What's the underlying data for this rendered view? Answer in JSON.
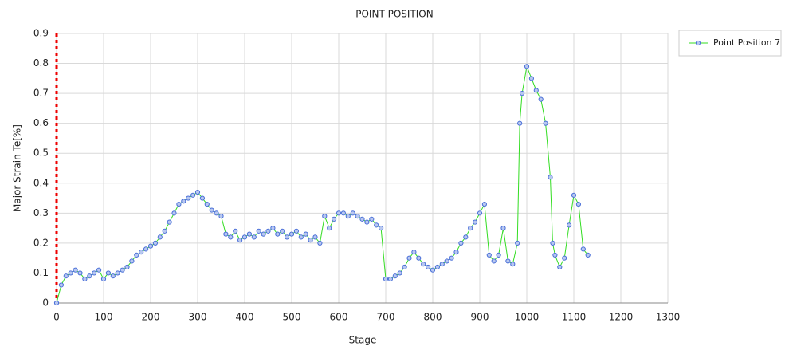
{
  "chart_data": {
    "type": "line",
    "title": "POINT POSITION",
    "x_label": "Stage",
    "y_label": "Major Strain Te[%]",
    "x": [
      0,
      10,
      20,
      30,
      40,
      50,
      60,
      70,
      80,
      90,
      100,
      110,
      120,
      130,
      140,
      150,
      160,
      170,
      180,
      190,
      200,
      210,
      220,
      230,
      240,
      250,
      260,
      270,
      280,
      290,
      300,
      310,
      320,
      330,
      340,
      350,
      360,
      370,
      380,
      390,
      400,
      410,
      420,
      430,
      440,
      450,
      460,
      470,
      480,
      490,
      500,
      510,
      520,
      530,
      540,
      550,
      560,
      570,
      580,
      590,
      600,
      610,
      620,
      630,
      640,
      650,
      660,
      670,
      680,
      690,
      700,
      710,
      720,
      730,
      740,
      750,
      760,
      770,
      780,
      790,
      800,
      810,
      820,
      830,
      840,
      850,
      860,
      870,
      880,
      890,
      900,
      910,
      920,
      930,
      940,
      950,
      960,
      970,
      980,
      985,
      990,
      1000,
      1010,
      1020,
      1030,
      1040,
      1050,
      1055,
      1060,
      1070,
      1080,
      1090,
      1100,
      1110,
      1120,
      1130
    ],
    "series": [
      {
        "name": "Point Position 7",
        "color": "#33dd22",
        "marker_color": "#4a6fd8",
        "values": [
          0,
          0.06,
          0.09,
          0.1,
          0.11,
          0.1,
          0.08,
          0.09,
          0.1,
          0.11,
          0.08,
          0.1,
          0.09,
          0.1,
          0.11,
          0.12,
          0.14,
          0.16,
          0.17,
          0.18,
          0.19,
          0.2,
          0.22,
          0.24,
          0.27,
          0.3,
          0.33,
          0.34,
          0.35,
          0.36,
          0.37,
          0.35,
          0.33,
          0.31,
          0.3,
          0.29,
          0.23,
          0.22,
          0.24,
          0.21,
          0.22,
          0.23,
          0.22,
          0.24,
          0.23,
          0.24,
          0.25,
          0.23,
          0.24,
          0.22,
          0.23,
          0.24,
          0.22,
          0.23,
          0.21,
          0.22,
          0.2,
          0.29,
          0.25,
          0.28,
          0.3,
          0.3,
          0.29,
          0.3,
          0.29,
          0.28,
          0.27,
          0.28,
          0.26,
          0.25,
          0.08,
          0.08,
          0.09,
          0.1,
          0.12,
          0.15,
          0.17,
          0.15,
          0.13,
          0.12,
          0.11,
          0.12,
          0.13,
          0.14,
          0.15,
          0.17,
          0.2,
          0.22,
          0.25,
          0.27,
          0.3,
          0.33,
          0.16,
          0.14,
          0.16,
          0.25,
          0.14,
          0.13,
          0.2,
          0.6,
          0.7,
          0.79,
          0.75,
          0.71,
          0.68,
          0.6,
          0.42,
          0.2,
          0.16,
          0.12,
          0.15,
          0.26,
          0.36,
          0.33,
          0.18,
          0.16
        ]
      }
    ],
    "xlim": [
      0,
      1300
    ],
    "xticks": [
      0,
      100,
      200,
      300,
      400,
      500,
      600,
      700,
      800,
      900,
      1000,
      1100,
      1200,
      1300
    ],
    "ylim": [
      0,
      0.9
    ],
    "yticks": [
      0,
      0.1,
      0.2,
      0.3,
      0.4,
      0.5,
      0.6,
      0.7,
      0.8,
      0.9
    ],
    "grid": true
  }
}
